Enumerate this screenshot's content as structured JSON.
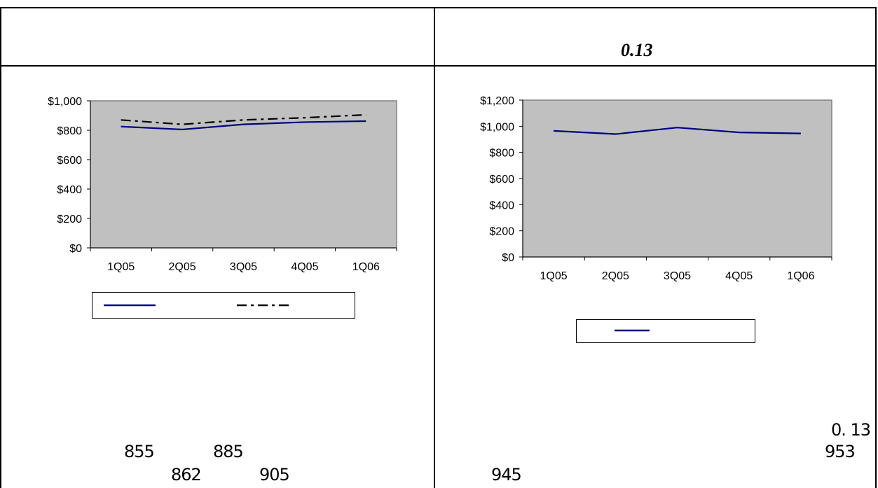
{
  "header": {
    "right_value": "0.13"
  },
  "chart_data": [
    {
      "type": "line",
      "categories": [
        "1Q05",
        "2Q05",
        "3Q05",
        "4Q05",
        "1Q06"
      ],
      "y_ticks": [
        "$1,000",
        "$800",
        "$600",
        "$400",
        "$200",
        "$0"
      ],
      "ylim": [
        0,
        1000
      ],
      "grid": false,
      "plot_background": "#c0c0c0",
      "series": [
        {
          "values": [
            825,
            805,
            840,
            855,
            862
          ],
          "color": "#000080",
          "style": "solid"
        },
        {
          "values": [
            870,
            840,
            870,
            885,
            905
          ],
          "color": "#000000",
          "style": "dash-dot"
        }
      ],
      "legend_position": "bottom"
    },
    {
      "type": "line",
      "categories": [
        "1Q05",
        "2Q05",
        "3Q05",
        "4Q05",
        "1Q06"
      ],
      "y_ticks": [
        "$1,200",
        "$1,000",
        "$800",
        "$600",
        "$400",
        "$200",
        "$0"
      ],
      "ylim": [
        0,
        1200
      ],
      "grid": false,
      "plot_background": "#c0c0c0",
      "series": [
        {
          "values": [
            965,
            940,
            990,
            953,
            945
          ],
          "color": "#000080",
          "style": "solid"
        }
      ],
      "legend_position": "bottom"
    }
  ],
  "left_numbers": {
    "a": "855",
    "b": "885",
    "c": "862",
    "d": "905"
  },
  "right_numbers": {
    "a": "0. 13",
    "b": "953",
    "c": "945"
  }
}
